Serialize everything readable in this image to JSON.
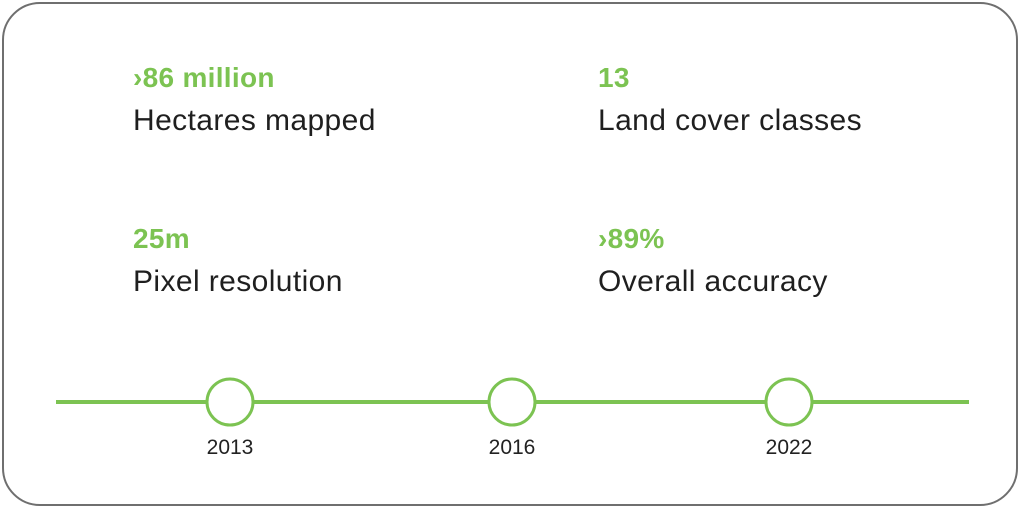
{
  "stats": [
    {
      "value": "›86 million",
      "label": "Hectares mapped"
    },
    {
      "value": "13",
      "label": "Land cover classes"
    },
    {
      "value": "25m",
      "label": "Pixel resolution"
    },
    {
      "value": "›89%",
      "label": "Overall accuracy"
    }
  ],
  "timeline": {
    "years": [
      "2013",
      "2016",
      "2022"
    ]
  },
  "colors": {
    "accent": "#7cc352",
    "text": "#1f1f1f",
    "border": "#6f6f6f"
  }
}
